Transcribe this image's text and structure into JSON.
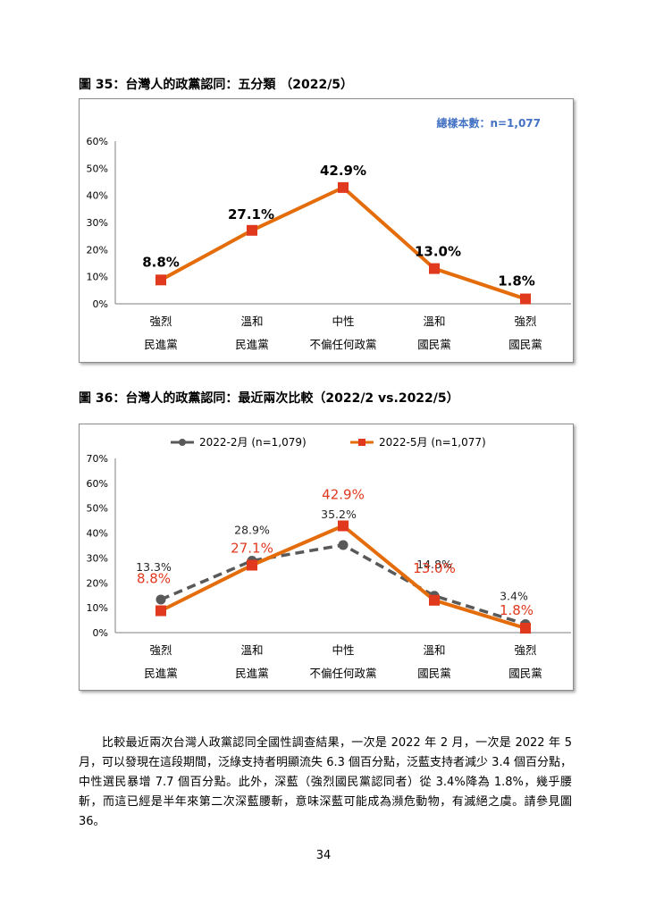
{
  "figure1": {
    "title": "圖 35：台灣人的政黨認同：五分類 （2022/5）",
    "note": "總樣本數：n=1,077",
    "note_color": "#4472c4",
    "line_color": "#e46c0a",
    "marker_color": "#e0391e",
    "categories": [
      [
        "強烈",
        "民進黨"
      ],
      [
        "溫和",
        "民進黨"
      ],
      [
        "中性",
        "不偏任何政黨"
      ],
      [
        "溫和",
        "國民黨"
      ],
      [
        "強烈",
        "國民黨"
      ]
    ],
    "y_ticks": [
      "0%",
      "10%",
      "20%",
      "30%",
      "40%",
      "50%",
      "60%"
    ]
  },
  "figure2": {
    "title": "圖 36：台灣人的政黨認同：最近兩次比較（2022/2 vs.2022/5）",
    "categories": [
      [
        "強烈",
        "民進黨"
      ],
      [
        "溫和",
        "民進黨"
      ],
      [
        "中性",
        "不偏任何政黨"
      ],
      [
        "溫和",
        "國民黨"
      ],
      [
        "強烈",
        "國民黨"
      ]
    ],
    "y_ticks": [
      "0%",
      "10%",
      "20%",
      "30%",
      "40%",
      "50%",
      "60%",
      "70%"
    ],
    "series_colors": [
      "#595959",
      "#e46c0a"
    ],
    "label_colors": [
      "#262626",
      "#e0391e"
    ]
  },
  "chart_data": [
    {
      "type": "line",
      "title": "圖 35：台灣人的政黨認同：五分類 （2022/5）",
      "categories": [
        "強烈 民進黨",
        "溫和 民進黨",
        "中性 不偏任何政黨",
        "溫和 國民黨",
        "強烈 國民黨"
      ],
      "series": [
        {
          "values": [
            8.8,
            27.1,
            42.9,
            13.0,
            1.8
          ],
          "labels": [
            "8.8%",
            "27.1%",
            "42.9%",
            "13.0%",
            "1.8%"
          ]
        }
      ],
      "ylim": [
        0,
        60
      ],
      "grid": false
    },
    {
      "type": "line",
      "title": "圖 36：台灣人的政黨認同：最近兩次比較（2022/2 vs.2022/5）",
      "categories": [
        "強烈 民進黨",
        "溫和 民進黨",
        "中性 不偏任何政黨",
        "溫和 國民黨",
        "強烈 國民黨"
      ],
      "series": [
        {
          "name": "2022-2月 (n=1,079)",
          "values": [
            13.3,
            28.9,
            35.2,
            14.8,
            3.4
          ],
          "labels": [
            "13.3%",
            "28.9%",
            "35.2%",
            "14.8%",
            "3.4%"
          ],
          "style": "dashed"
        },
        {
          "name": "2022-5月 (n=1,077)",
          "values": [
            8.8,
            27.1,
            42.9,
            13.0,
            1.8
          ],
          "labels": [
            "8.8%",
            "27.1%",
            "42.9%",
            "13.0%",
            "1.8%"
          ],
          "style": "solid"
        }
      ],
      "ylim": [
        0,
        70
      ],
      "legend": "top",
      "grid": false
    }
  ],
  "paragraph": "比較最近兩次台灣人政黨認同全國性調查結果，一次是 2022 年 2 月，一次是 2022 年 5 月，可以發現在這段期間，泛綠支持者明顯流失 6.3 個百分點，泛藍支持者減少 3.4 個百分點，中性選民暴增 7.7 個百分點。此外，深藍（強烈國民黨認同者）從 3.4%降為 1.8%，幾乎腰斬，而這已經是半年來第二次深藍腰斬，意味深藍可能成為瀕危動物，有滅絕之虞。請參見圖 36。",
  "page_number": "34"
}
